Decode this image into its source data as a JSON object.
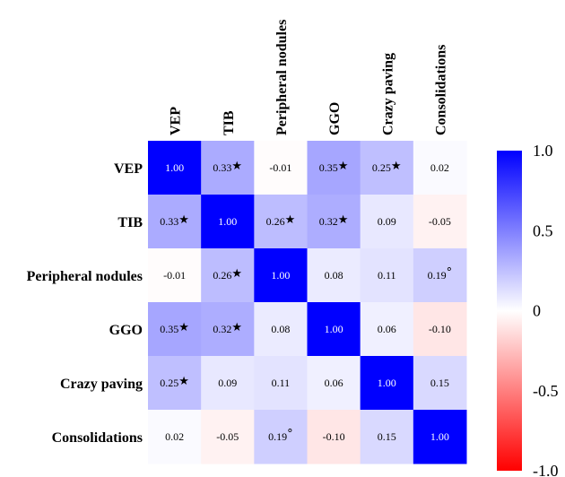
{
  "chart_data": {
    "type": "heatmap",
    "title": "",
    "xlabel": "",
    "ylabel": "",
    "row_labels": [
      "VEP",
      "TIB",
      "Peripheral nodules",
      "GGO",
      "Crazy paving",
      "Consolidations"
    ],
    "col_labels": [
      "VEP",
      "TIB",
      "Peripheral nodules",
      "GGO",
      "Crazy paving",
      "Consolidations"
    ],
    "values": [
      [
        1.0,
        0.33,
        -0.01,
        0.35,
        0.25,
        0.02
      ],
      [
        0.33,
        1.0,
        0.26,
        0.32,
        0.09,
        -0.05
      ],
      [
        -0.01,
        0.26,
        1.0,
        0.08,
        0.11,
        0.19
      ],
      [
        0.35,
        0.32,
        0.08,
        1.0,
        0.06,
        -0.1
      ],
      [
        0.25,
        0.09,
        0.11,
        0.06,
        1.0,
        0.15
      ],
      [
        0.02,
        -0.05,
        0.19,
        -0.1,
        0.15,
        1.0
      ]
    ],
    "cell_labels": [
      [
        "1.00",
        "0.33",
        "-0.01",
        "0.35",
        "0.25",
        "0.02"
      ],
      [
        "0.33",
        "1.00",
        "0.26",
        "0.32",
        "0.09",
        "-0.05"
      ],
      [
        "-0.01",
        "0.26",
        "1.00",
        "0.08",
        "0.11",
        "0.19"
      ],
      [
        "0.35",
        "0.32",
        "0.08",
        "1.00",
        "0.06",
        "-0.10"
      ],
      [
        "0.25",
        "0.09",
        "0.11",
        "0.06",
        "1.00",
        "0.15"
      ],
      [
        "0.02",
        "-0.05",
        "0.19",
        "-0.10",
        "0.15",
        "1.00"
      ]
    ],
    "markers": [
      [
        "",
        "★",
        "",
        "★",
        "★",
        ""
      ],
      [
        "★",
        "",
        "★",
        "★",
        "",
        ""
      ],
      [
        "",
        "★",
        "",
        "",
        "",
        "°"
      ],
      [
        "★",
        "★",
        "",
        "",
        "",
        ""
      ],
      [
        "★",
        "",
        "",
        "",
        "",
        ""
      ],
      [
        "",
        "",
        "°",
        "",
        "",
        ""
      ]
    ],
    "color_scale": {
      "min": -1.0,
      "max": 1.0,
      "low_color": "#ff0000",
      "mid_color": "#ffffff",
      "high_color": "#0000ff",
      "ticks": [
        1.0,
        0.5,
        0,
        -0.5,
        -1.0
      ],
      "tick_labels": [
        "1.0",
        "0.5",
        "0",
        "-0.5",
        "-1.0"
      ]
    }
  }
}
